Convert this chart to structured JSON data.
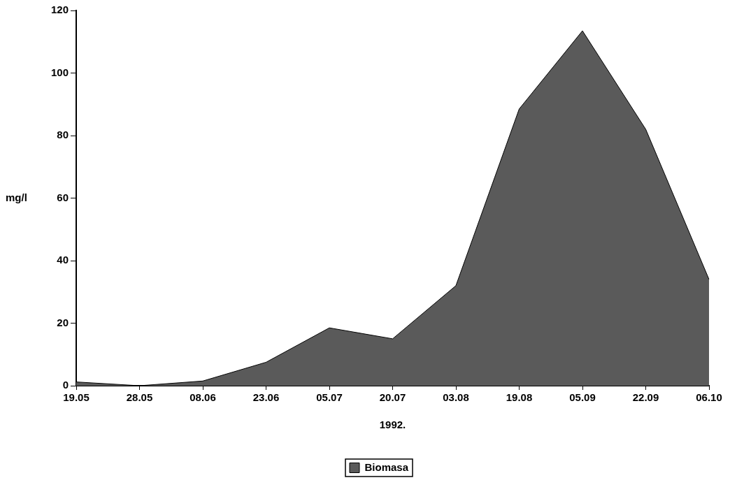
{
  "chart_data": {
    "type": "area",
    "xlabel": "1992.",
    "ylabel": "mg/l",
    "categories": [
      "19.05",
      "28.05",
      "08.06",
      "23.06",
      "05.07",
      "20.07",
      "03.08",
      "19.08",
      "05.09",
      "22.09",
      "06.10"
    ],
    "series": [
      {
        "name": "Biomasa",
        "color": "#5a5a5a",
        "values": [
          1.2,
          0,
          1.5,
          7.5,
          18.5,
          15,
          32,
          88.5,
          113.5,
          82,
          34
        ]
      }
    ],
    "ylim": [
      0,
      120
    ],
    "yticks": [
      0,
      20,
      40,
      60,
      80,
      100,
      120
    ],
    "grid": false,
    "legend": "bottom"
  }
}
